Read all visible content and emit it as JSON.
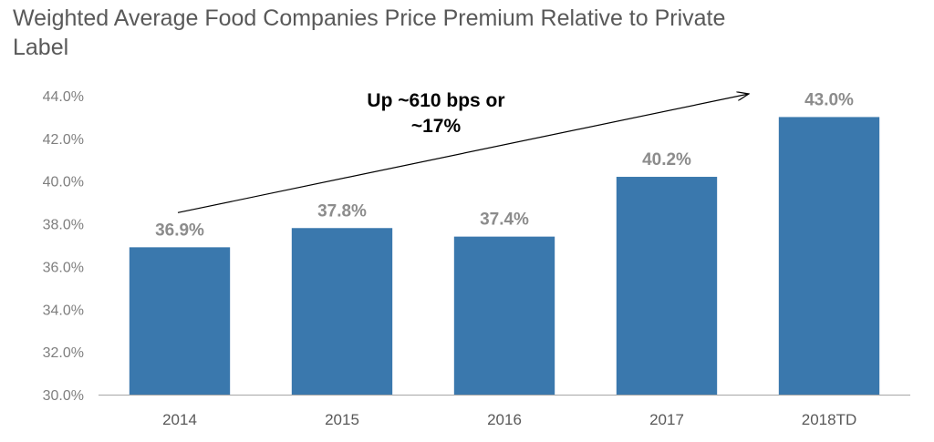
{
  "chart_data": {
    "type": "bar",
    "title": "Weighted Average Food Companies Price Premium Relative to Private Label",
    "xlabel": "",
    "ylabel": "",
    "categories": [
      "2014",
      "2015",
      "2016",
      "2017",
      "2018TD"
    ],
    "values": [
      36.9,
      37.8,
      37.4,
      40.2,
      43.0
    ],
    "value_labels": [
      "36.9%",
      "37.8%",
      "37.4%",
      "40.2%",
      "43.0%"
    ],
    "ylim": [
      30.0,
      44.0
    ],
    "yticks": [
      30.0,
      32.0,
      34.0,
      36.0,
      38.0,
      40.0,
      42.0,
      44.0
    ],
    "ytick_labels": [
      "30.0%",
      "32.0%",
      "34.0%",
      "36.0%",
      "38.0%",
      "40.0%",
      "42.0%",
      "44.0%"
    ],
    "grid": false,
    "bar_color": "#3a78ad",
    "annotation": {
      "lines": [
        "Up ~610 bps or",
        "~17%"
      ],
      "arrow_from_category": "2014",
      "arrow_to_category": "2018TD"
    }
  }
}
